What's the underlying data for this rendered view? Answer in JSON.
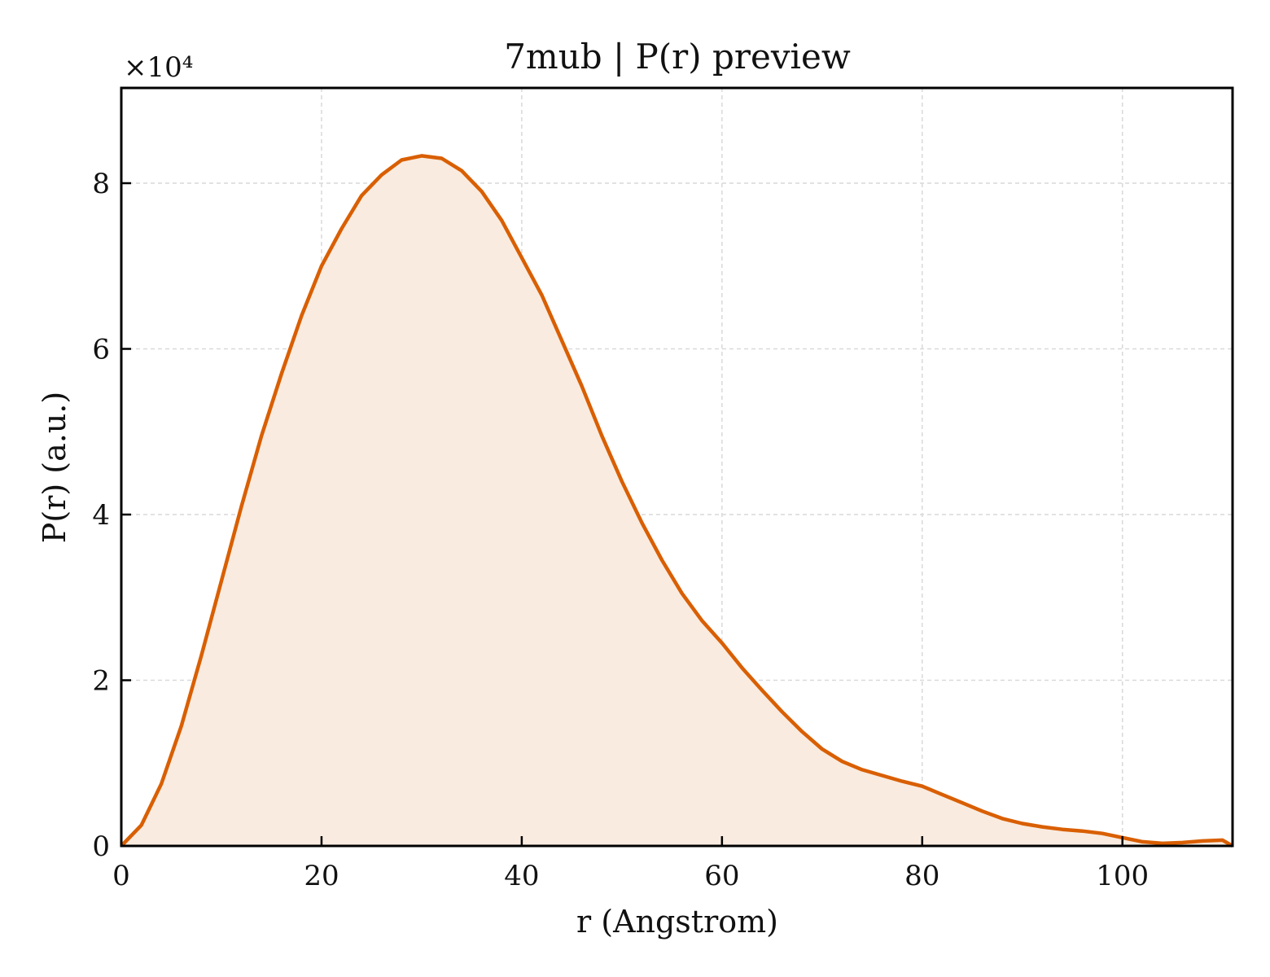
{
  "chart_data": {
    "type": "area",
    "title": "7mub | P(r) preview",
    "xlabel": "r (Angstrom)",
    "ylabel": "P(r) (a.u.)",
    "y_offset_label": "×10⁴",
    "y_scale_factor": 10000,
    "xlim": [
      0,
      111
    ],
    "ylim": [
      0,
      9.15
    ],
    "x_ticks": [
      0,
      20,
      40,
      60,
      80,
      100
    ],
    "x_tick_labels": [
      "0",
      "20",
      "40",
      "60",
      "80",
      "100"
    ],
    "y_ticks": [
      0,
      2,
      4,
      6,
      8
    ],
    "y_tick_labels": [
      "0",
      "2",
      "4",
      "6",
      "8"
    ],
    "grid": true,
    "legend": "none",
    "colors": {
      "line": "#d95f02",
      "fill": "#f9ebe0",
      "grid": "#d9d9d9",
      "axes": "#000000"
    },
    "series": [
      {
        "x": [
          0,
          2,
          4,
          6,
          8,
          10,
          12,
          14,
          16,
          18,
          20,
          22,
          24,
          26,
          28,
          30,
          32,
          34,
          36,
          38,
          40,
          42,
          44,
          46,
          48,
          50,
          52,
          54,
          56,
          58,
          60,
          62,
          64,
          66,
          68,
          70,
          72,
          74,
          76,
          78,
          80,
          82,
          84,
          86,
          88,
          90,
          92,
          94,
          96,
          98,
          100,
          102,
          104,
          106,
          108,
          110,
          111
        ],
        "y": [
          0,
          0.25,
          0.75,
          1.45,
          2.3,
          3.2,
          4.1,
          4.95,
          5.7,
          6.4,
          7.0,
          7.45,
          7.85,
          8.1,
          8.28,
          8.33,
          8.3,
          8.15,
          7.9,
          7.55,
          7.1,
          6.65,
          6.1,
          5.55,
          4.95,
          4.4,
          3.9,
          3.45,
          3.05,
          2.72,
          2.45,
          2.15,
          1.88,
          1.62,
          1.38,
          1.17,
          1.02,
          0.92,
          0.85,
          0.78,
          0.72,
          0.62,
          0.52,
          0.42,
          0.33,
          0.27,
          0.23,
          0.2,
          0.18,
          0.15,
          0.1,
          0.05,
          0.03,
          0.04,
          0.06,
          0.07,
          0.0
        ]
      }
    ]
  }
}
